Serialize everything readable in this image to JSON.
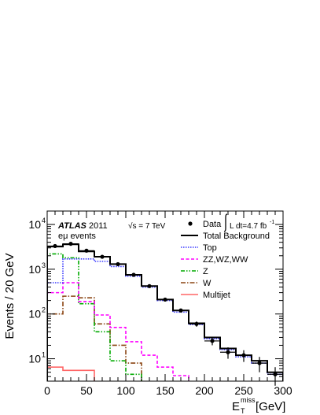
{
  "chart_data": {
    "type": "line",
    "xlabel_main": "E",
    "xlabel_sub": "T",
    "xlabel_sup": "miss",
    "xlabel_unit": "[GeV]",
    "ylabel": "Events / 20 GeV",
    "xlim": [
      0,
      300
    ],
    "ylim_log10": [
      0.5,
      4.3
    ],
    "yscale": "log",
    "grid": false,
    "legend_position": "top-right",
    "x_ticks": [
      0,
      50,
      100,
      150,
      200,
      250,
      300
    ],
    "y_tick_exponents": [
      1,
      2,
      3,
      4
    ],
    "annotations": {
      "experiment": "ATLAS",
      "year": "2011",
      "channel": "eμ events",
      "energy": "√s = 7 TeV",
      "lumi": "L dt=4.7 fb"
    },
    "bin_edges": [
      0,
      20,
      40,
      60,
      80,
      100,
      120,
      140,
      160,
      180,
      200,
      220,
      240,
      260,
      280,
      300
    ],
    "series": [
      {
        "name": "Data",
        "style": "points",
        "color": "#000000",
        "values": [
          3300,
          3700,
          2600,
          1900,
          1300,
          750,
          420,
          210,
          120,
          60,
          25,
          14,
          12,
          8,
          4.5
        ],
        "errors": [
          60,
          60,
          50,
          45,
          36,
          27,
          21,
          15,
          11,
          8,
          5,
          4,
          3.5,
          3,
          2
        ]
      },
      {
        "name": "Total Background",
        "style": "solid",
        "color": "#000000",
        "values": [
          3200,
          3600,
          2500,
          1900,
          1300,
          750,
          420,
          210,
          120,
          62,
          30,
          17,
          12,
          9,
          5
        ]
      },
      {
        "name": "Top",
        "style": "dotted",
        "color": "#3a3aff",
        "values": [
          500,
          1700,
          1700,
          1500,
          1150,
          700,
          400,
          200,
          110,
          58,
          28,
          16,
          11,
          8,
          4.5
        ]
      },
      {
        "name": "ZZ,WZ,WW",
        "style": "dashed",
        "color": "#ff00ff",
        "values": [
          300,
          500,
          190,
          95,
          50,
          24,
          12,
          6.5,
          4.2,
          3,
          null,
          null,
          null,
          null,
          null
        ]
      },
      {
        "name": "Z",
        "style": "dash-dot-dot",
        "color": "#00aa00",
        "values": [
          2200,
          1800,
          170,
          40,
          9,
          4.5,
          null,
          null,
          null,
          null,
          null,
          null,
          null,
          null,
          null
        ]
      },
      {
        "name": "W",
        "style": "dash-dot",
        "color": "#8b4513",
        "values": [
          100,
          250,
          230,
          60,
          20,
          8,
          null,
          null,
          null,
          null,
          null,
          null,
          null,
          null,
          null
        ]
      },
      {
        "name": "Multijet",
        "style": "solid",
        "color": "#ff6666",
        "values": [
          6.5,
          5.5,
          5.5,
          null,
          null,
          null,
          null,
          null,
          null,
          null,
          null,
          null,
          null,
          null,
          null
        ]
      }
    ]
  }
}
